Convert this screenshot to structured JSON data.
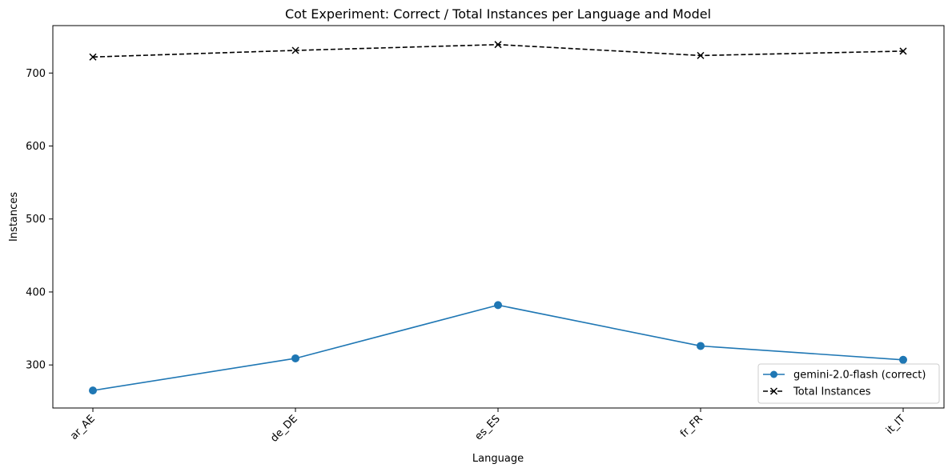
{
  "chart_data": {
    "type": "line",
    "title": "Cot Experiment: Correct / Total Instances per Language and Model",
    "xlabel": "Language",
    "ylabel": "Instances",
    "categories": [
      "ar_AE",
      "de_DE",
      "es_ES",
      "fr_FR",
      "it_IT"
    ],
    "ylim": [
      241,
      765
    ],
    "yticks": [
      300,
      400,
      500,
      600,
      700
    ],
    "grid": false,
    "legend_position": "lower-right",
    "series": [
      {
        "name": "gemini-2.0-flash (correct)",
        "values": [
          265,
          309,
          382,
          326,
          307
        ],
        "color": "#1f77b4",
        "marker": "circle",
        "linestyle": "solid"
      },
      {
        "name": "Total Instances",
        "values": [
          722,
          731,
          739,
          724,
          730
        ],
        "color": "#000000",
        "marker": "x",
        "linestyle": "dashed"
      }
    ]
  }
}
